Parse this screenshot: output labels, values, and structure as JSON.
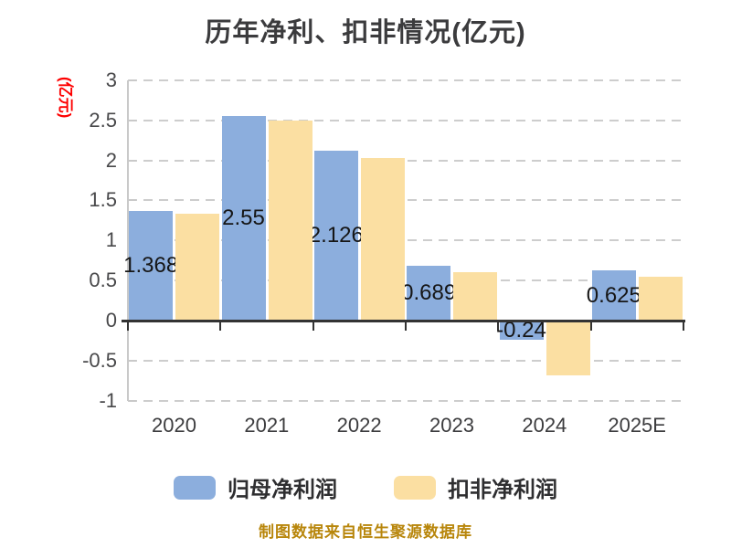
{
  "title": "历年净利、扣非情况(亿元)",
  "y_axis_unit_label": "(亿元)",
  "footer": "制图数据来自恒生聚源数据库",
  "colors": {
    "series_blue": "#8caedd",
    "series_yellow": "#fbdfa2",
    "grid": "#cdcdcd",
    "zero_axis": "#333333",
    "title_text": "#3b3b3d",
    "tick_text": "#48484a",
    "unit_label_red": "#fe0000",
    "footer_gold": "#b8860b"
  },
  "legend": {
    "items": [
      {
        "label": "归母净利润",
        "color": "#8caedd"
      },
      {
        "label": "扣非净利润",
        "color": "#fbdfa2"
      }
    ]
  },
  "chart_data": {
    "type": "bar",
    "title": "历年净利、扣非情况(亿元)",
    "ylabel": "(亿元)",
    "categories": [
      "2020",
      "2021",
      "2022",
      "2023",
      "2024",
      "2025E"
    ],
    "series": [
      {
        "name": "归母净利润",
        "color": "#8caedd",
        "values": [
          1.368,
          2.55,
          2.126,
          0.689,
          -0.24,
          0.625
        ],
        "data_labels": [
          "1.368",
          "2.55",
          "2.126",
          "0.689",
          "-0.24",
          "0.625"
        ]
      },
      {
        "name": "扣非净利润",
        "color": "#fbdfa2",
        "values": [
          1.33,
          2.5,
          2.03,
          0.61,
          -0.68,
          0.55
        ],
        "data_labels": []
      }
    ],
    "ylim": [
      -1,
      3
    ],
    "ytick_labels": [
      "3",
      "2.5",
      "2",
      "1.5",
      "1",
      "0.5",
      "0",
      "-0.5",
      "-1"
    ],
    "ytick_values": [
      3,
      2.5,
      2,
      1.5,
      1,
      0.5,
      0,
      -0.5,
      -1
    ],
    "grid": "horizontal dashed",
    "legend_position": "bottom",
    "data_label_position": "inside-center of blue bars, partially occluded by yellow bars"
  }
}
